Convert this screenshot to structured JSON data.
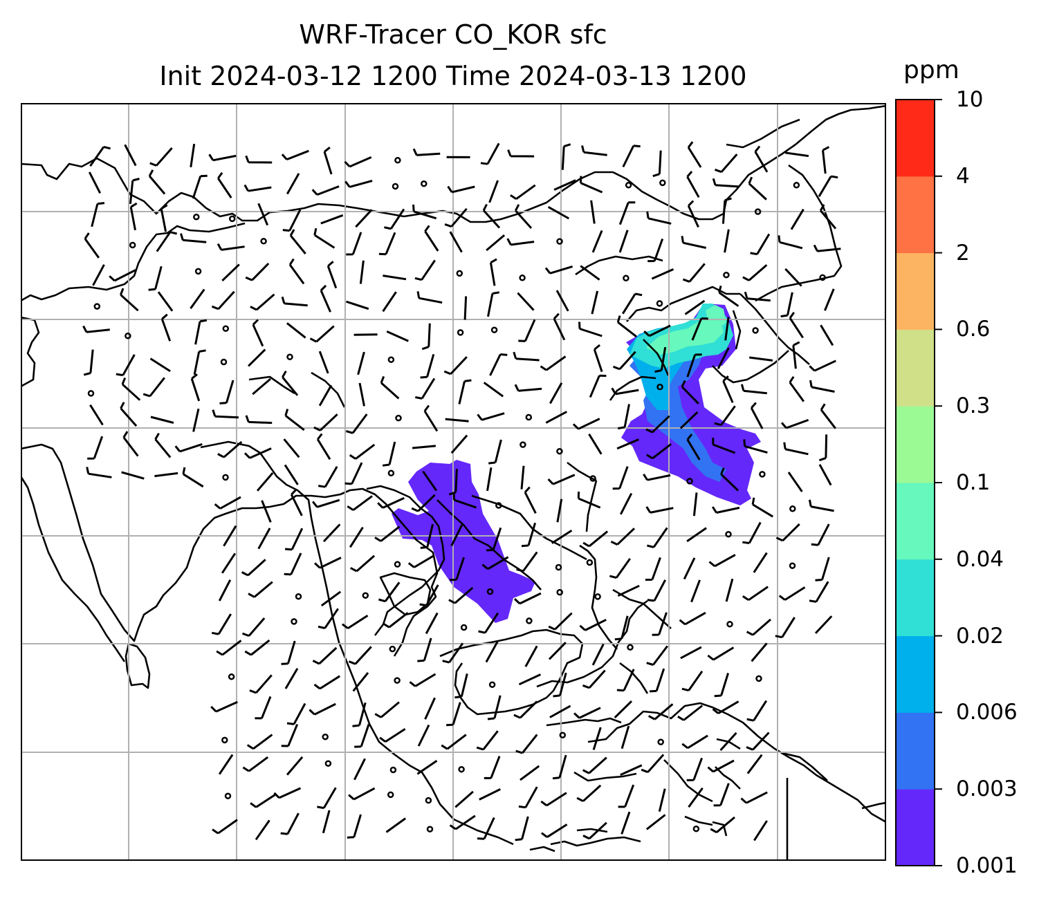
{
  "title": {
    "line1": "WRF-Tracer CO_KOR sfc",
    "line2": "Init 2024-03-12 1200 Time 2024-03-13 1200"
  },
  "colorbar": {
    "unit": "ppm",
    "levels": [
      "0.001",
      "0.003",
      "0.006",
      "0.02",
      "0.04",
      "0.1",
      "0.3",
      "0.6",
      "2",
      "4",
      "10"
    ],
    "colors": [
      "#6428fa",
      "#3273f3",
      "#00b0ec",
      "#30dfd5",
      "#66f8bc",
      "#9cfa95",
      "#cfe088",
      "#fdb462",
      "#ff7243",
      "#ff2a17"
    ]
  },
  "map": {
    "gridlines": true,
    "grid_color": "#b0b0b0",
    "coastline_color": "#000000"
  }
}
